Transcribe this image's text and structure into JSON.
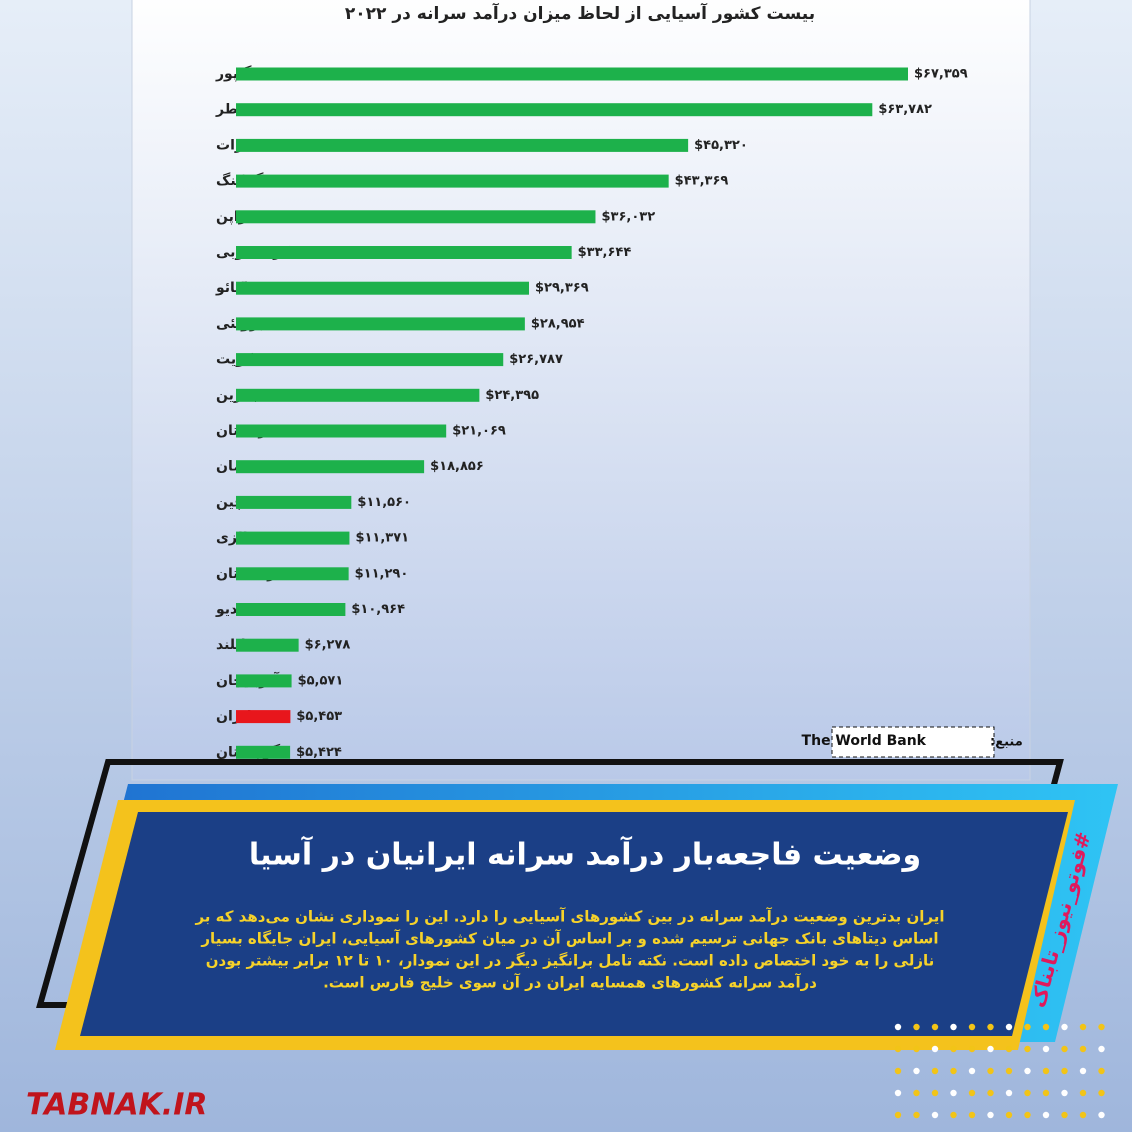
{
  "chart_data": {
    "type": "bar",
    "orientation": "horizontal",
    "title": "بیست کشور آسیایی از لحاظ میزان درآمد سرانه در ۲۰۲۲",
    "categories": [
      "سنگاپور",
      "قطر",
      "امارات",
      "هنگ کنگ",
      "ژاپن",
      "کره جنوبی",
      "ماکائو",
      "برونئی",
      "کویت",
      "بحرین",
      "عربستان",
      "عمان",
      "چین",
      "مالزی",
      "قزاقستان",
      "مالدیو",
      "تایلند",
      "آذربایجان",
      "ایران",
      "گرجستان"
    ],
    "values": [
      67359,
      63782,
      45320,
      43369,
      36032,
      33644,
      29369,
      28954,
      26787,
      24395,
      21069,
      18856,
      11560,
      11371,
      11290,
      10964,
      6278,
      5571,
      5453,
      5424
    ],
    "value_labels": [
      "$۶۷,۳۵۹",
      "$۶۳,۷۸۲",
      "$۴۵,۳۲۰",
      "$۴۳,۳۶۹",
      "$۳۶,۰۳۲",
      "$۳۳,۶۴۴",
      "$۲۹,۳۶۹",
      "$۲۸,۹۵۴",
      "$۲۶,۷۸۷",
      "$۲۴,۳۹۵",
      "$۲۱,۰۶۹",
      "$۱۸,۸۵۶",
      "$۱۱,۵۶۰",
      "$۱۱,۳۷۱",
      "$۱۱,۲۹۰",
      "$۱۰,۹۶۴",
      "$۶,۲۷۸",
      "$۵,۵۷۱",
      "$۵,۴۵۳",
      "$۵,۴۲۴"
    ],
    "colors": [
      "#1db14b",
      "#1db14b",
      "#1db14b",
      "#1db14b",
      "#1db14b",
      "#1db14b",
      "#1db14b",
      "#1db14b",
      "#1db14b",
      "#1db14b",
      "#1db14b",
      "#1db14b",
      "#1db14b",
      "#1db14b",
      "#1db14b",
      "#1db14b",
      "#1db14b",
      "#1db14b",
      "#e8161c",
      "#1db14b"
    ],
    "source_label": "منبع:",
    "source": "The World Bank"
  },
  "banner": {
    "title": "وضعیت فاجعه‌بار درآمد سرانه ایرانیان در آسیا",
    "body": [
      "ایران بدترین وضعیت درآمد سرانه در بین کشورهای آسیایی را دارد. این را نموداری نشان می‌دهد که بر",
      "اساس دیتاهای بانک جهانی ترسیم شده و بر اساس آن در میان کشورهای آسیایی، ایران جایگاه بسیار",
      "نازلی را به خود اختصاص داده است. نکته تامل برانگیز دیگر در این نمودار، ۱۰ تا ۱۲ برابر بیشتر بودن",
      "درآمد سرانه کشورهای همسایه ایران در آن سوی خلیج فارس است."
    ],
    "tag": "#فوتو_نیوز_تابناک"
  },
  "logo": "TABNAK.IR"
}
